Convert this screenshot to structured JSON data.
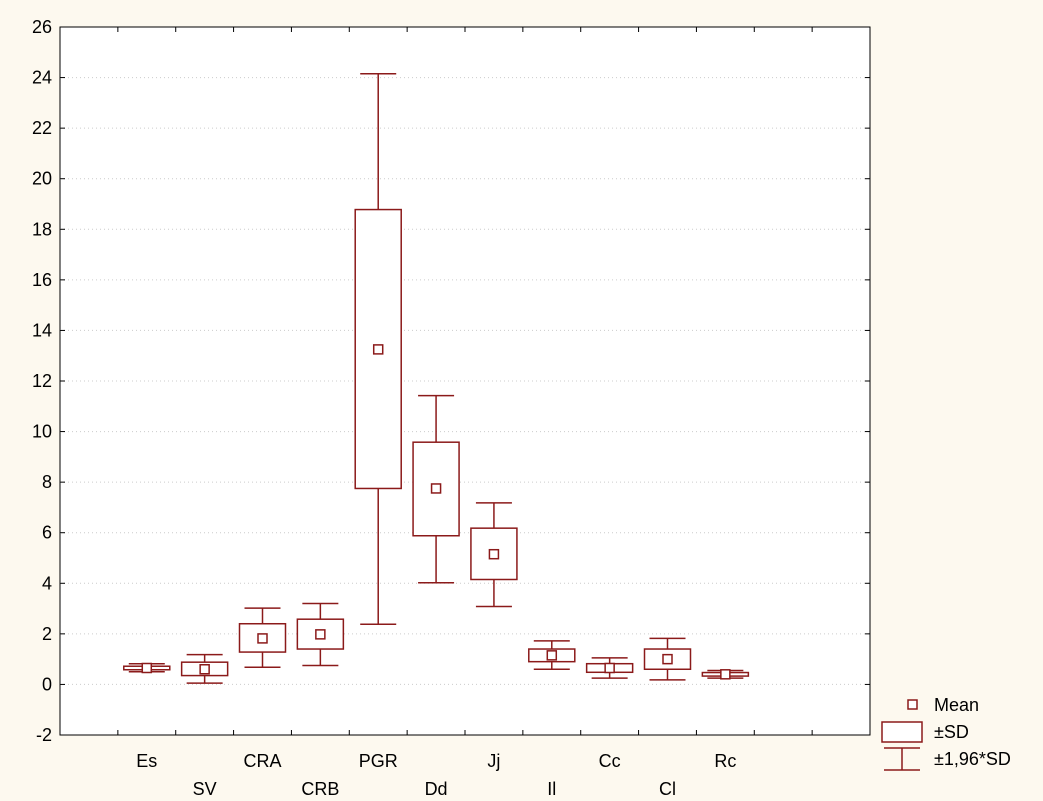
{
  "colors": {
    "background": "#fdf9ef",
    "plot_background": "#ffffff",
    "series": "#8b1a1a",
    "grid": "#cccccc"
  },
  "chart_data": {
    "type": "box",
    "title": "",
    "xlabel": "",
    "ylabel": "",
    "ylim": [
      -2,
      26
    ],
    "yticks": [
      -2,
      0,
      2,
      4,
      6,
      8,
      10,
      12,
      14,
      16,
      18,
      20,
      22,
      24,
      26
    ],
    "grid": true,
    "categories": [
      "Es",
      "SV",
      "CRA",
      "CRB",
      "PGR",
      "Dd",
      "Jj",
      "Il",
      "Cc",
      "Cl",
      "Rc"
    ],
    "mean": [
      0.65,
      0.6,
      1.82,
      1.98,
      13.25,
      7.75,
      5.15,
      1.15,
      0.65,
      1.0,
      0.4
    ],
    "sd_low": [
      0.58,
      0.35,
      1.28,
      1.4,
      7.75,
      5.88,
      4.15,
      0.9,
      0.48,
      0.6,
      0.33
    ],
    "sd_high": [
      0.72,
      0.88,
      2.4,
      2.58,
      18.78,
      9.58,
      6.18,
      1.4,
      0.82,
      1.4,
      0.47
    ],
    "ci_low": [
      0.5,
      0.05,
      0.68,
      0.75,
      2.38,
      4.02,
      3.08,
      0.6,
      0.25,
      0.18,
      0.25
    ],
    "ci_high": [
      0.82,
      1.18,
      3.02,
      3.2,
      24.15,
      11.42,
      7.18,
      1.72,
      1.05,
      1.82,
      0.55
    ],
    "legend": {
      "position": "bottom-right",
      "items": [
        {
          "symbol": "mean-marker",
          "label": "Mean"
        },
        {
          "symbol": "box",
          "label": "±SD"
        },
        {
          "symbol": "whisker",
          "label": "±1,96*SD"
        }
      ]
    }
  }
}
